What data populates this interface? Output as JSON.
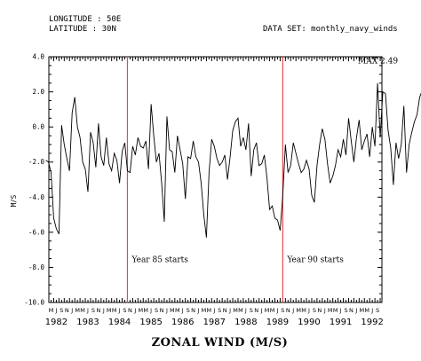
{
  "header": {
    "longitude": "LONGITUDE : 50E",
    "latitude": "LATITUDE : 30N",
    "dataset": "DATA SET: monthly_navy_winds"
  },
  "chart_data": {
    "type": "line",
    "xlabel": "ZONAL WIND (M/S)",
    "ylabel": "M/S",
    "ylim": [
      -10,
      4
    ],
    "yticks": [
      "4.0",
      "2.0",
      "0.0",
      "-2.0",
      "-4.0",
      "-6.0",
      "-8.0",
      "-10.0"
    ],
    "month_letters": [
      "J",
      "F",
      "M",
      "A",
      "M",
      "J",
      "J",
      "A",
      "S",
      "O",
      "N",
      "D"
    ],
    "years": [
      "1982",
      "1983",
      "1984",
      "1985",
      "1986",
      "1987",
      "1988",
      "1989",
      "1990",
      "1991",
      "1992"
    ],
    "start": "1982-03",
    "x_labels_from": "1982-05",
    "x_labels_to": "1992-10",
    "values": [
      -1.9,
      -2.0,
      -2.6,
      -5.2,
      -5.8,
      -6.1,
      0.1,
      -1.0,
      -1.8,
      -2.5,
      0.8,
      1.7,
      0.0,
      -0.6,
      -2.0,
      -2.4,
      -3.7,
      -0.3,
      -0.9,
      -2.3,
      0.2,
      -1.7,
      -2.2,
      -0.6,
      -2.1,
      -2.5,
      -1.5,
      -1.9,
      -3.2,
      -1.4,
      -0.9,
      -2.5,
      -2.6,
      -1.1,
      -1.6,
      -0.6,
      -1.1,
      -1.2,
      -0.8,
      -2.4,
      1.3,
      -0.5,
      -2.0,
      -1.5,
      -3.2,
      -5.4,
      0.6,
      -1.3,
      -1.4,
      -2.6,
      -0.5,
      -1.3,
      -2.1,
      -4.1,
      -1.7,
      -1.8,
      -0.8,
      -1.7,
      -2.0,
      -3.2,
      -5.0,
      -6.3,
      -2.6,
      -0.7,
      -1.1,
      -1.8,
      -2.2,
      -2.0,
      -1.6,
      -3.0,
      -1.7,
      -0.2,
      0.3,
      0.5,
      -1.1,
      -0.6,
      -1.3,
      0.2,
      -2.8,
      -1.3,
      -0.9,
      -2.2,
      -2.1,
      -1.6,
      -2.9,
      -4.7,
      -4.5,
      -5.2,
      -5.3,
      -5.9,
      -3.9,
      -1.0,
      -2.6,
      -2.2,
      -0.9,
      -1.5,
      -2.1,
      -2.6,
      -2.4,
      -1.9,
      -2.4,
      -3.9,
      -4.3,
      -2.2,
      -1.0,
      -0.1,
      -0.7,
      -2.1,
      -3.2,
      -2.8,
      -2.2,
      -1.3,
      -1.7,
      -0.7,
      -1.6,
      0.5,
      -0.8,
      -2.0,
      -0.6,
      0.4,
      -1.3,
      -0.8,
      -0.4,
      -1.7,
      0.0,
      -1.1,
      2.5,
      -0.6,
      2.0,
      1.9,
      -0.2,
      -1.2,
      -3.3,
      -0.9,
      -1.8,
      -1.0,
      1.2,
      -2.6,
      -1.0,
      -0.3,
      0.3,
      0.7,
      1.7,
      2.1,
      1.9,
      1.5,
      0.3,
      1.3,
      0.6,
      0.3
    ],
    "markers": [
      {
        "date": "1984-10",
        "label": "Year 85 starts",
        "color": "#e8494f"
      },
      {
        "date": "1989-09",
        "label": "Year 90 starts",
        "color": "#e8494f"
      }
    ],
    "max_annotation": {
      "label": "MAX 2.49"
    },
    "grid": false
  }
}
